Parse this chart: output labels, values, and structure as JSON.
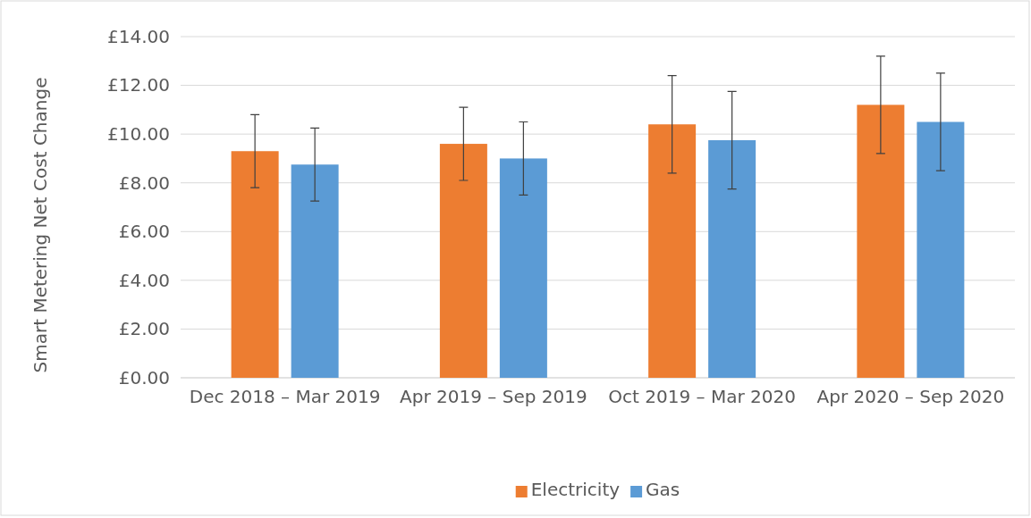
{
  "chart_data": {
    "type": "bar",
    "ylabel": "Smart Metering Net Cost Change",
    "categories": [
      "Dec 2018 – Mar 2019",
      "Apr 2019 – Sep 2019",
      "Oct 2019 – Mar 2020",
      "Apr 2020 – Sep 2020"
    ],
    "series": [
      {
        "name": "Electricity",
        "color": "#ed7d31",
        "values": [
          9.3,
          9.6,
          10.4,
          11.2
        ],
        "errors": [
          1.5,
          1.5,
          2,
          2
        ]
      },
      {
        "name": "Gas",
        "color": "#5b9bd5",
        "values": [
          8.75,
          9.0,
          9.75,
          10.5
        ],
        "errors": [
          1.5,
          1.5,
          2,
          2
        ]
      }
    ],
    "ylim": [
      0,
      14
    ],
    "yticks": [
      {
        "value": 0,
        "label": "£0.00"
      },
      {
        "value": 2,
        "label": "£2.00"
      },
      {
        "value": 4,
        "label": "£4.00"
      },
      {
        "value": 6,
        "label": "£6.00"
      },
      {
        "value": 8,
        "label": "£8.00"
      },
      {
        "value": 10,
        "label": "£10.00"
      },
      {
        "value": 12,
        "label": "£12.00"
      },
      {
        "value": 14,
        "label": "£14.00"
      }
    ],
    "grid": "y",
    "legend": "bottom"
  }
}
